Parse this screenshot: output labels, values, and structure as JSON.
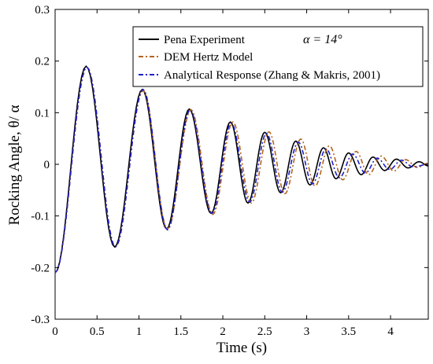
{
  "chart_data": {
    "type": "line",
    "xlabel": "Time (s)",
    "ylabel": "Rocking Angle, θ/ α",
    "xlim": [
      0,
      4.45
    ],
    "ylim": [
      -0.3,
      0.3
    ],
    "xticks": [
      0,
      0.5,
      1,
      1.5,
      2,
      2.5,
      3,
      3.5,
      4
    ],
    "xtick_labels": [
      "0",
      "0.5",
      "1",
      "1.5",
      "2",
      "2.5",
      "3",
      "3.5",
      "4"
    ],
    "yticks": [
      -0.3,
      -0.2,
      -0.1,
      0,
      0.1,
      0.2,
      0.3
    ],
    "ytick_labels": [
      "-0.3",
      "-0.2",
      "-0.1",
      "0",
      "0.1",
      "0.2",
      "0.3"
    ],
    "grid": false,
    "legend_position": "top-right",
    "annotation": "α = 14°",
    "series": [
      {
        "name": "Pena Experiment",
        "color": "#000000",
        "style": "solid",
        "x": [
          0,
          0.37,
          0.71,
          1.04,
          1.33,
          1.6,
          1.86,
          2.09,
          2.3,
          2.5,
          2.69,
          2.87,
          3.04,
          3.2,
          3.35,
          3.5,
          3.65,
          3.79,
          3.93,
          4.07,
          4.21,
          4.34,
          4.45
        ],
        "y": [
          -0.21,
          0.19,
          -0.16,
          0.145,
          -0.125,
          0.107,
          -0.095,
          0.082,
          -0.075,
          0.062,
          -0.055,
          0.045,
          -0.04,
          0.032,
          -0.028,
          0.022,
          -0.02,
          0.014,
          -0.012,
          0.01,
          -0.007,
          0.005,
          -0.003
        ]
      },
      {
        "name": "DEM Hertz Model",
        "color": "#b5651d",
        "style": "dashdot",
        "x": [
          0,
          0.38,
          0.72,
          1.05,
          1.34,
          1.62,
          1.88,
          2.12,
          2.34,
          2.55,
          2.74,
          2.93,
          3.1,
          3.27,
          3.43,
          3.59,
          3.74,
          3.89,
          4.04,
          4.18,
          4.32,
          4.45
        ],
        "y": [
          -0.21,
          0.188,
          -0.16,
          0.143,
          -0.125,
          0.106,
          -0.097,
          0.082,
          -0.075,
          0.063,
          -0.057,
          0.049,
          -0.042,
          0.036,
          -0.03,
          0.025,
          -0.02,
          0.016,
          -0.013,
          0.009,
          -0.006,
          0.002
        ]
      },
      {
        "name": "Analytical Response (Zhang & Makris, 2001)",
        "color": "#1f1fcc",
        "style": "dashdot",
        "x": [
          0,
          0.38,
          0.72,
          1.05,
          1.34,
          1.61,
          1.87,
          2.1,
          2.32,
          2.52,
          2.71,
          2.9,
          3.07,
          3.23,
          3.39,
          3.55,
          3.7,
          3.84,
          3.99,
          4.13,
          4.27,
          4.45
        ],
        "y": [
          -0.21,
          0.188,
          -0.16,
          0.145,
          -0.127,
          0.105,
          -0.095,
          0.08,
          -0.073,
          0.06,
          -0.054,
          0.043,
          -0.038,
          0.03,
          -0.026,
          0.02,
          -0.017,
          0.012,
          -0.01,
          0.008,
          -0.005,
          0.0
        ]
      }
    ]
  }
}
